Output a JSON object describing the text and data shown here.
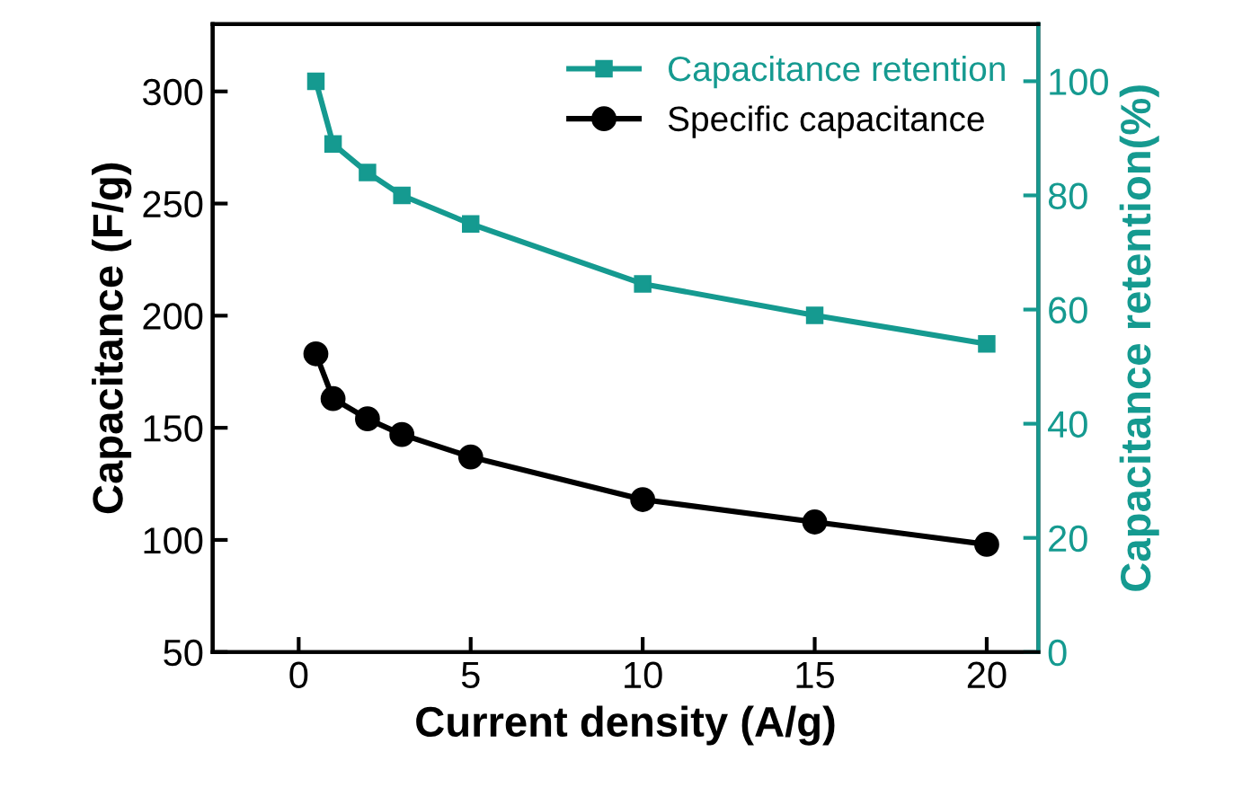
{
  "chart_data": {
    "type": "line",
    "xlabel": "Current density (A/g)",
    "ylabel": "Capacitance (F/g)",
    "y2label": "Capacitance retention(%)",
    "x": [
      0.5,
      1,
      2,
      3,
      5,
      10,
      15,
      20
    ],
    "series": [
      {
        "name": "Capacitance retention",
        "color": "#159a90",
        "axis": "y2",
        "marker": "square",
        "values": [
          100,
          89,
          84,
          80,
          75,
          64.5,
          59,
          54
        ]
      },
      {
        "name": "Specific capacitance",
        "color": "#000000",
        "marker": "circle",
        "values": [
          183,
          163,
          154,
          147,
          137,
          118,
          108,
          98
        ]
      }
    ],
    "xlim": [
      -2.5,
      21.5
    ],
    "xticks": [
      0,
      5,
      10,
      15,
      20
    ],
    "ylim": [
      50,
      330
    ],
    "yticks": [
      50,
      100,
      150,
      200,
      250,
      300
    ],
    "y2lim": [
      0,
      110
    ],
    "y2ticks": [
      0,
      20,
      40,
      60,
      80,
      100
    ],
    "grid": false,
    "legend": "top right",
    "line_style": "solid"
  }
}
